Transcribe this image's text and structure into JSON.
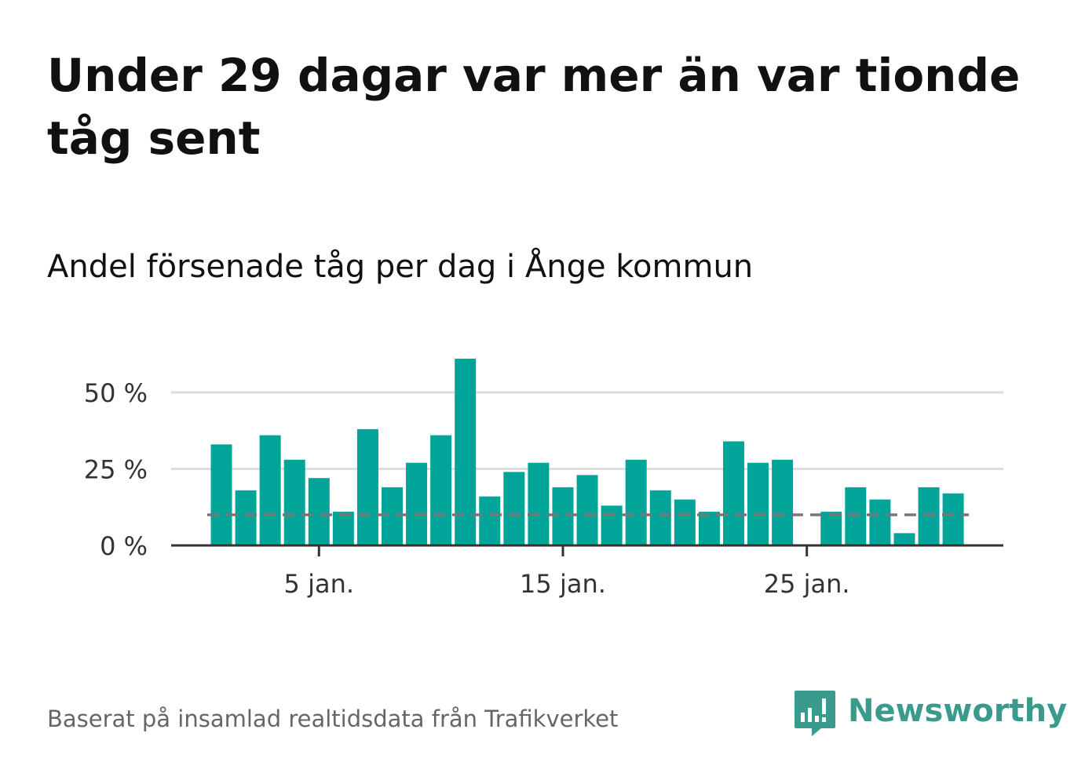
{
  "headline": "Under 29 dagar var mer än var tionde tåg sent",
  "subtitle": "Andel försenade tåg per dag i Ånge kommun",
  "source": "Baserat på insamlad realtidsdata från Trafikverket",
  "brand": {
    "name": "Newsworthy",
    "icon": "bar-chart-speech-bubble-icon",
    "color": "#3a9a8c"
  },
  "colors": {
    "bar": "#00a499",
    "reference_line": "#777777",
    "axis": "#333333",
    "grid": "#dddddd",
    "tick_label": "#333333"
  },
  "chart_data": {
    "type": "bar",
    "x": [
      1,
      2,
      3,
      4,
      5,
      6,
      7,
      8,
      9,
      10,
      11,
      12,
      13,
      14,
      15,
      16,
      17,
      18,
      19,
      20,
      21,
      22,
      23,
      24,
      25,
      26,
      27,
      28,
      29,
      30,
      31
    ],
    "x_unit": "day of January",
    "values": [
      33,
      18,
      36,
      28,
      22,
      11,
      38,
      19,
      27,
      36,
      61,
      16,
      24,
      27,
      19,
      23,
      13,
      28,
      18,
      15,
      11,
      34,
      27,
      28,
      0,
      11,
      19,
      15,
      4,
      19,
      17
    ],
    "x_ticks": [
      5,
      15,
      25
    ],
    "x_tick_labels": [
      "5 jan.",
      "15 jan.",
      "25 jan."
    ],
    "y_ticks": [
      0,
      25,
      50
    ],
    "y_tick_labels": [
      "0 %",
      "25 %",
      "50 %"
    ],
    "ylim": [
      0,
      61
    ],
    "reference_line": {
      "value": 10,
      "style": "dashed"
    },
    "grid": true,
    "legend": "none",
    "xlabel": "",
    "ylabel": ""
  }
}
